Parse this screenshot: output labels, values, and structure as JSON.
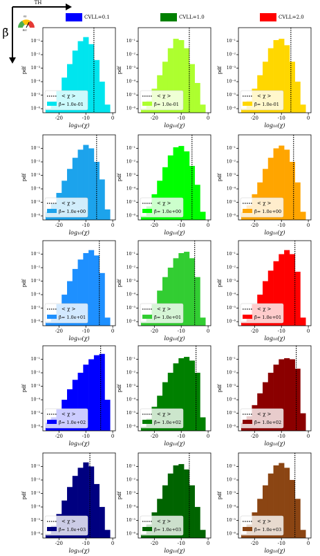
{
  "header": {
    "x_arrow_label": "TH",
    "y_arrow_label": "β̄",
    "icon_labels": [
      "SI",
      "RU"
    ],
    "legend": [
      {
        "name": "CVLL=0.1",
        "color": "#0000ff"
      },
      {
        "name": "CVLL=1.0",
        "color": "#008000"
      },
      {
        "name": "CVLL=2.0",
        "color": "#ff0000"
      }
    ]
  },
  "chart_data": [
    {
      "type": "histogram",
      "name": "β̄= 1.0e-01",
      "color": "#00e5ee",
      "mean": -7,
      "values": [
        1e-06,
        3e-06,
        2e-05,
        0.0002,
        0.002,
        0.02,
        0.1,
        0.2,
        0.06,
        0.004,
        0.0001,
        2e-06
      ],
      "bins": [
        -25,
        -23,
        -21,
        -19,
        -17,
        -15,
        -13,
        -11,
        -9,
        -7,
        -5,
        -3,
        -1
      ],
      "xlim": [
        -26,
        1
      ],
      "xticks": [
        -20,
        -10,
        0
      ],
      "ylim": [
        5e-07,
        1
      ],
      "log_y": true,
      "yticks": [
        {
          "value": 1e-06,
          "label": "10⁻⁶"
        },
        {
          "value": 1e-05,
          "label": "10⁻⁵"
        },
        {
          "value": 0.0001,
          "label": "10⁻⁴"
        },
        {
          "value": 0.001,
          "label": "10⁻³"
        },
        {
          "value": 0.01,
          "label": "10⁻²"
        },
        {
          "value": 0.1,
          "label": "10⁻¹"
        }
      ],
      "xlabel": "log₁₀(χ)",
      "ylabel": "pdf",
      "mean_label": "< χ >",
      "legend": "lower left"
    },
    {
      "type": "histogram",
      "name": "β̄= 1.0e-01",
      "color": "#adff2f",
      "mean": -7,
      "values": [
        1e-06,
        4e-06,
        3e-05,
        0.0003,
        0.003,
        0.03,
        0.15,
        0.12,
        0.03,
        0.002,
        8e-05,
        2e-06
      ],
      "bins": [
        -25,
        -23,
        -21,
        -19,
        -17,
        -15,
        -13,
        -11,
        -9,
        -7,
        -5,
        -3,
        -1
      ],
      "xlim": [
        -26,
        1
      ],
      "xticks": [
        -20,
        -10,
        0
      ],
      "ylim": [
        5e-07,
        1
      ],
      "log_y": true,
      "yticks": [
        {
          "value": 1e-06,
          "label": "10⁻⁶"
        },
        {
          "value": 1e-05,
          "label": "10⁻⁵"
        },
        {
          "value": 0.0001,
          "label": "10⁻⁴"
        },
        {
          "value": 0.001,
          "label": "10⁻³"
        },
        {
          "value": 0.01,
          "label": "10⁻²"
        },
        {
          "value": 0.1,
          "label": "10⁻¹"
        }
      ],
      "xlabel": "log₁₀(χ)",
      "ylabel": "pdf",
      "mean_label": "< χ >",
      "legend": "lower left"
    },
    {
      "type": "histogram",
      "name": "β̄= 1.0e-01",
      "color": "#ffd700",
      "mean": -6.5,
      "values": [
        1e-06,
        4e-06,
        3e-05,
        0.0003,
        0.003,
        0.03,
        0.12,
        0.15,
        0.05,
        0.003,
        0.0001,
        2e-06
      ],
      "bins": [
        -25,
        -23,
        -21,
        -19,
        -17,
        -15,
        -13,
        -11,
        -9,
        -7,
        -5,
        -3,
        -1
      ],
      "xlim": [
        -26,
        1
      ],
      "xticks": [
        -20,
        -10,
        0
      ],
      "ylim": [
        5e-07,
        1
      ],
      "log_y": true,
      "yticks": [
        {
          "value": 1e-06,
          "label": "10⁻⁶"
        },
        {
          "value": 1e-05,
          "label": "10⁻⁵"
        },
        {
          "value": 0.0001,
          "label": "10⁻⁴"
        },
        {
          "value": 0.001,
          "label": "10⁻³"
        },
        {
          "value": 0.01,
          "label": "10⁻²"
        },
        {
          "value": 0.1,
          "label": "10⁻¹"
        }
      ],
      "xlabel": "log₁₀(χ)",
      "ylabel": "pdf",
      "mean_label": "< χ >",
      "legend": "lower left"
    },
    {
      "type": "histogram",
      "name": "β̄= 1.0e+00",
      "color": "#1ca3ec",
      "mean": -6,
      "values": [
        2e-06,
        8e-06,
        5e-05,
        0.0004,
        0.003,
        0.02,
        0.08,
        0.18,
        0.1,
        0.01,
        0.0005,
        3e-06
      ],
      "bins": [
        -25,
        -23,
        -21,
        -19,
        -17,
        -15,
        -13,
        -11,
        -9,
        -7,
        -5,
        -3,
        -1
      ],
      "xlim": [
        -26,
        1
      ],
      "xticks": [
        -20,
        -10,
        0
      ],
      "ylim": [
        5e-07,
        1
      ],
      "log_y": true,
      "yticks": [
        {
          "value": 1e-06,
          "label": "10⁻⁶"
        },
        {
          "value": 1e-05,
          "label": "10⁻⁵"
        },
        {
          "value": 0.0001,
          "label": "10⁻⁴"
        },
        {
          "value": 0.001,
          "label": "10⁻³"
        },
        {
          "value": 0.01,
          "label": "10⁻²"
        },
        {
          "value": 0.1,
          "label": "10⁻¹"
        }
      ],
      "xlabel": "log₁₀(χ)",
      "ylabel": "pdf",
      "mean_label": "< χ >",
      "legend": "lower left"
    },
    {
      "type": "histogram",
      "name": "β̄= 1.0e+00",
      "color": "#00ff00",
      "mean": -6,
      "values": [
        1e-06,
        5e-06,
        4e-05,
        0.0004,
        0.004,
        0.03,
        0.12,
        0.15,
        0.06,
        0.005,
        0.0002,
        2e-06
      ],
      "bins": [
        -25,
        -23,
        -21,
        -19,
        -17,
        -15,
        -13,
        -11,
        -9,
        -7,
        -5,
        -3,
        -1
      ],
      "xlim": [
        -26,
        1
      ],
      "xticks": [
        -20,
        -10,
        0
      ],
      "ylim": [
        5e-07,
        1
      ],
      "log_y": true,
      "yticks": [
        {
          "value": 1e-06,
          "label": "10⁻⁶"
        },
        {
          "value": 1e-05,
          "label": "10⁻⁵"
        },
        {
          "value": 0.0001,
          "label": "10⁻⁴"
        },
        {
          "value": 0.001,
          "label": "10⁻³"
        },
        {
          "value": 0.01,
          "label": "10⁻²"
        },
        {
          "value": 0.1,
          "label": "10⁻¹"
        }
      ],
      "xlabel": "log₁₀(χ)",
      "ylabel": "pdf",
      "mean_label": "< χ >",
      "legend": "lower left"
    },
    {
      "type": "histogram",
      "name": "β̄= 1.0e+00",
      "color": "#ffa500",
      "mean": -5.5,
      "values": [
        2e-06,
        6e-06,
        4e-05,
        0.0003,
        0.003,
        0.02,
        0.1,
        0.16,
        0.08,
        0.01,
        0.0003,
        2e-06
      ],
      "bins": [
        -25,
        -23,
        -21,
        -19,
        -17,
        -15,
        -13,
        -11,
        -9,
        -7,
        -5,
        -3,
        -1
      ],
      "xlim": [
        -26,
        1
      ],
      "xticks": [
        -20,
        -10,
        0
      ],
      "ylim": [
        5e-07,
        1
      ],
      "log_y": true,
      "yticks": [
        {
          "value": 1e-06,
          "label": "10⁻⁶"
        },
        {
          "value": 1e-05,
          "label": "10⁻⁵"
        },
        {
          "value": 0.0001,
          "label": "10⁻⁴"
        },
        {
          "value": 0.001,
          "label": "10⁻³"
        },
        {
          "value": 0.01,
          "label": "10⁻²"
        },
        {
          "value": 0.1,
          "label": "10⁻¹"
        }
      ],
      "xlabel": "log₁₀(χ)",
      "ylabel": "pdf",
      "mean_label": "< χ >",
      "legend": "lower left"
    },
    {
      "type": "histogram",
      "name": "β̄= 1.0e+01",
      "color": "#1e90ff",
      "mean": -5,
      "values": [
        1e-06,
        3e-06,
        2e-05,
        0.0001,
        0.001,
        0.008,
        0.04,
        0.12,
        0.2,
        0.08,
        0.004,
        2e-06
      ],
      "bins": [
        -25,
        -23,
        -21,
        -19,
        -17,
        -15,
        -13,
        -11,
        -9,
        -7,
        -5,
        -3,
        -1
      ],
      "xlim": [
        -26,
        1
      ],
      "xticks": [
        -20,
        -10,
        0
      ],
      "ylim": [
        5e-07,
        1
      ],
      "log_y": true,
      "yticks": [
        {
          "value": 1e-06,
          "label": "10⁻⁶"
        },
        {
          "value": 1e-05,
          "label": "10⁻⁵"
        },
        {
          "value": 0.0001,
          "label": "10⁻⁴"
        },
        {
          "value": 0.001,
          "label": "10⁻³"
        },
        {
          "value": 0.01,
          "label": "10⁻²"
        },
        {
          "value": 0.1,
          "label": "10⁻¹"
        }
      ],
      "xlabel": "log₁₀(χ)",
      "ylabel": "pdf",
      "mean_label": "< χ >",
      "legend": "lower left"
    },
    {
      "type": "histogram",
      "name": "β̄= 1.0e+01",
      "color": "#32cd32",
      "mean": -5,
      "values": [
        1e-06,
        3e-06,
        2e-05,
        0.0002,
        0.002,
        0.01,
        0.05,
        0.12,
        0.15,
        0.05,
        0.002,
        2e-06
      ],
      "bins": [
        -25,
        -23,
        -21,
        -19,
        -17,
        -15,
        -13,
        -11,
        -9,
        -7,
        -5,
        -3,
        -1
      ],
      "xlim": [
        -26,
        1
      ],
      "xticks": [
        -20,
        -10,
        0
      ],
      "ylim": [
        5e-07,
        1
      ],
      "log_y": true,
      "yticks": [
        {
          "value": 1e-06,
          "label": "10⁻⁶"
        },
        {
          "value": 1e-05,
          "label": "10⁻⁵"
        },
        {
          "value": 0.0001,
          "label": "10⁻⁴"
        },
        {
          "value": 0.001,
          "label": "10⁻³"
        },
        {
          "value": 0.01,
          "label": "10⁻²"
        },
        {
          "value": 0.1,
          "label": "10⁻¹"
        }
      ],
      "xlabel": "log₁₀(χ)",
      "ylabel": "pdf",
      "mean_label": "< χ >",
      "legend": "lower left"
    },
    {
      "type": "histogram",
      "name": "β̄= 1.0e+01",
      "color": "#ff0000",
      "mean": -5,
      "values": [
        1e-06,
        3e-06,
        2e-05,
        0.0001,
        0.001,
        0.006,
        0.03,
        0.1,
        0.2,
        0.1,
        0.005,
        2e-06
      ],
      "bins": [
        -25,
        -23,
        -21,
        -19,
        -17,
        -15,
        -13,
        -11,
        -9,
        -7,
        -5,
        -3,
        -1
      ],
      "xlim": [
        -26,
        1
      ],
      "xticks": [
        -20,
        -10,
        0
      ],
      "ylim": [
        5e-07,
        1
      ],
      "log_y": true,
      "yticks": [
        {
          "value": 1e-06,
          "label": "10⁻⁶"
        },
        {
          "value": 1e-05,
          "label": "10⁻⁵"
        },
        {
          "value": 0.0001,
          "label": "10⁻⁴"
        },
        {
          "value": 0.001,
          "label": "10⁻³"
        },
        {
          "value": 0.01,
          "label": "10⁻²"
        },
        {
          "value": 0.1,
          "label": "10⁻¹"
        }
      ],
      "xlabel": "log₁₀(χ)",
      "ylabel": "pdf",
      "mean_label": "< χ >",
      "legend": "lower left"
    },
    {
      "type": "histogram",
      "name": "β̄= 1.0e+02",
      "color": "#0000ff",
      "mean": -4.5,
      "values": [
        2e-06,
        5e-06,
        2e-05,
        0.0001,
        0.0006,
        0.003,
        0.01,
        0.04,
        0.1,
        0.2,
        0.25,
        0.0001
      ],
      "bins": [
        -25,
        -23,
        -21,
        -19,
        -17,
        -15,
        -13,
        -11,
        -9,
        -7,
        -5,
        -3,
        -1
      ],
      "xlim": [
        -26,
        1
      ],
      "xticks": [
        -20,
        -10,
        0
      ],
      "ylim": [
        5e-07,
        1
      ],
      "log_y": true,
      "yticks": [
        {
          "value": 1e-06,
          "label": "10⁻⁶"
        },
        {
          "value": 1e-05,
          "label": "10⁻⁵"
        },
        {
          "value": 0.0001,
          "label": "10⁻⁴"
        },
        {
          "value": 0.001,
          "label": "10⁻³"
        },
        {
          "value": 0.01,
          "label": "10⁻²"
        },
        {
          "value": 0.1,
          "label": "10⁻¹"
        }
      ],
      "xlabel": "log₁₀(χ)",
      "ylabel": "pdf",
      "mean_label": "< χ >",
      "legend": "lower left"
    },
    {
      "type": "histogram",
      "name": "β̄= 1.0e+02",
      "color": "#008000",
      "mean": -4.5,
      "values": [
        1e-06,
        4e-06,
        3e-05,
        0.0002,
        0.002,
        0.01,
        0.05,
        0.12,
        0.15,
        0.08,
        0.01,
        5e-06
      ],
      "bins": [
        -25,
        -23,
        -21,
        -19,
        -17,
        -15,
        -13,
        -11,
        -9,
        -7,
        -5,
        -3,
        -1
      ],
      "xlim": [
        -26,
        1
      ],
      "xticks": [
        -20,
        -10,
        0
      ],
      "ylim": [
        5e-07,
        1
      ],
      "log_y": true,
      "yticks": [
        {
          "value": 1e-06,
          "label": "10⁻⁶"
        },
        {
          "value": 1e-05,
          "label": "10⁻⁵"
        },
        {
          "value": 0.0001,
          "label": "10⁻⁴"
        },
        {
          "value": 0.001,
          "label": "10⁻³"
        },
        {
          "value": 0.01,
          "label": "10⁻²"
        },
        {
          "value": 0.1,
          "label": "10⁻¹"
        }
      ],
      "xlabel": "log₁₀(χ)",
      "ylabel": "pdf",
      "mean_label": "< χ >",
      "legend": "lower left"
    },
    {
      "type": "histogram",
      "name": "β̄= 1.0e+02",
      "color": "#8b0000",
      "mean": -4.5,
      "values": [
        2e-06,
        6e-06,
        4e-05,
        0.0003,
        0.002,
        0.01,
        0.04,
        0.1,
        0.12,
        0.1,
        0.02,
        1e-05
      ],
      "bins": [
        -25,
        -23,
        -21,
        -19,
        -17,
        -15,
        -13,
        -11,
        -9,
        -7,
        -5,
        -3,
        -1
      ],
      "xlim": [
        -26,
        1
      ],
      "xticks": [
        -20,
        -10,
        0
      ],
      "ylim": [
        5e-07,
        1
      ],
      "log_y": true,
      "yticks": [
        {
          "value": 1e-06,
          "label": "10⁻⁶"
        },
        {
          "value": 1e-05,
          "label": "10⁻⁵"
        },
        {
          "value": 0.0001,
          "label": "10⁻⁴"
        },
        {
          "value": 0.001,
          "label": "10⁻³"
        },
        {
          "value": 0.01,
          "label": "10⁻²"
        },
        {
          "value": 0.1,
          "label": "10⁻¹"
        }
      ],
      "xlabel": "log₁₀(χ)",
      "ylabel": "pdf",
      "mean_label": "< χ >",
      "legend": "lower left"
    },
    {
      "type": "histogram",
      "name": "β̄= 1.0e+03",
      "color": "#000080",
      "mean": -8.5,
      "values": [
        1e-06,
        4e-06,
        3e-05,
        0.0003,
        0.003,
        0.02,
        0.08,
        0.2,
        0.1,
        0.005,
        0.0001,
        2e-06
      ],
      "bins": [
        -25,
        -23,
        -21,
        -19,
        -17,
        -15,
        -13,
        -11,
        -9,
        -7,
        -5,
        -3,
        -1
      ],
      "xlim": [
        -26,
        1
      ],
      "xticks": [
        -20,
        -10,
        0
      ],
      "ylim": [
        5e-07,
        1
      ],
      "log_y": true,
      "yticks": [
        {
          "value": 1e-06,
          "label": "10⁻⁶"
        },
        {
          "value": 1e-05,
          "label": "10⁻⁵"
        },
        {
          "value": 0.0001,
          "label": "10⁻⁴"
        },
        {
          "value": 0.001,
          "label": "10⁻³"
        },
        {
          "value": 0.01,
          "label": "10⁻²"
        },
        {
          "value": 0.1,
          "label": "10⁻¹"
        }
      ],
      "xlabel": "log₁₀(χ)",
      "ylabel": "pdf",
      "mean_label": "< χ >",
      "legend": "lower left"
    },
    {
      "type": "histogram",
      "name": "β̄= 1.0e+03",
      "color": "#006400",
      "mean": -7,
      "values": [
        1e-06,
        5e-06,
        4e-05,
        0.0004,
        0.004,
        0.03,
        0.12,
        0.15,
        0.06,
        0.004,
        0.0001,
        2e-06
      ],
      "bins": [
        -25,
        -23,
        -21,
        -19,
        -17,
        -15,
        -13,
        -11,
        -9,
        -7,
        -5,
        -3,
        -1
      ],
      "xlim": [
        -26,
        1
      ],
      "xticks": [
        -20,
        -10,
        0
      ],
      "ylim": [
        5e-07,
        1
      ],
      "log_y": true,
      "yticks": [
        {
          "value": 1e-06,
          "label": "10⁻⁶"
        },
        {
          "value": 1e-05,
          "label": "10⁻⁵"
        },
        {
          "value": 0.0001,
          "label": "10⁻⁴"
        },
        {
          "value": 0.001,
          "label": "10⁻³"
        },
        {
          "value": 0.01,
          "label": "10⁻²"
        },
        {
          "value": 0.1,
          "label": "10⁻¹"
        }
      ],
      "xlabel": "log₁₀(χ)",
      "ylabel": "pdf",
      "mean_label": "< χ >",
      "legend": "lower left"
    },
    {
      "type": "histogram",
      "name": "β̄= 1.0e+03",
      "color": "#8b4513",
      "mean": -5,
      "values": [
        1e-06,
        5e-06,
        4e-05,
        0.0004,
        0.004,
        0.03,
        0.12,
        0.18,
        0.08,
        0.01,
        0.0004,
        2e-06
      ],
      "bins": [
        -25,
        -23,
        -21,
        -19,
        -17,
        -15,
        -13,
        -11,
        -9,
        -7,
        -5,
        -3,
        -1
      ],
      "xlim": [
        -26,
        1
      ],
      "xticks": [
        -20,
        -10,
        0
      ],
      "ylim": [
        5e-07,
        1
      ],
      "log_y": true,
      "yticks": [
        {
          "value": 1e-06,
          "label": "10⁻⁶"
        },
        {
          "value": 1e-05,
          "label": "10⁻⁵"
        },
        {
          "value": 0.0001,
          "label": "10⁻⁴"
        },
        {
          "value": 0.001,
          "label": "10⁻³"
        },
        {
          "value": 0.01,
          "label": "10⁻²"
        },
        {
          "value": 0.1,
          "label": "10⁻¹"
        }
      ],
      "xlabel": "log₁₀(χ)",
      "ylabel": "pdf",
      "mean_label": "< χ >",
      "legend": "lower left"
    }
  ]
}
